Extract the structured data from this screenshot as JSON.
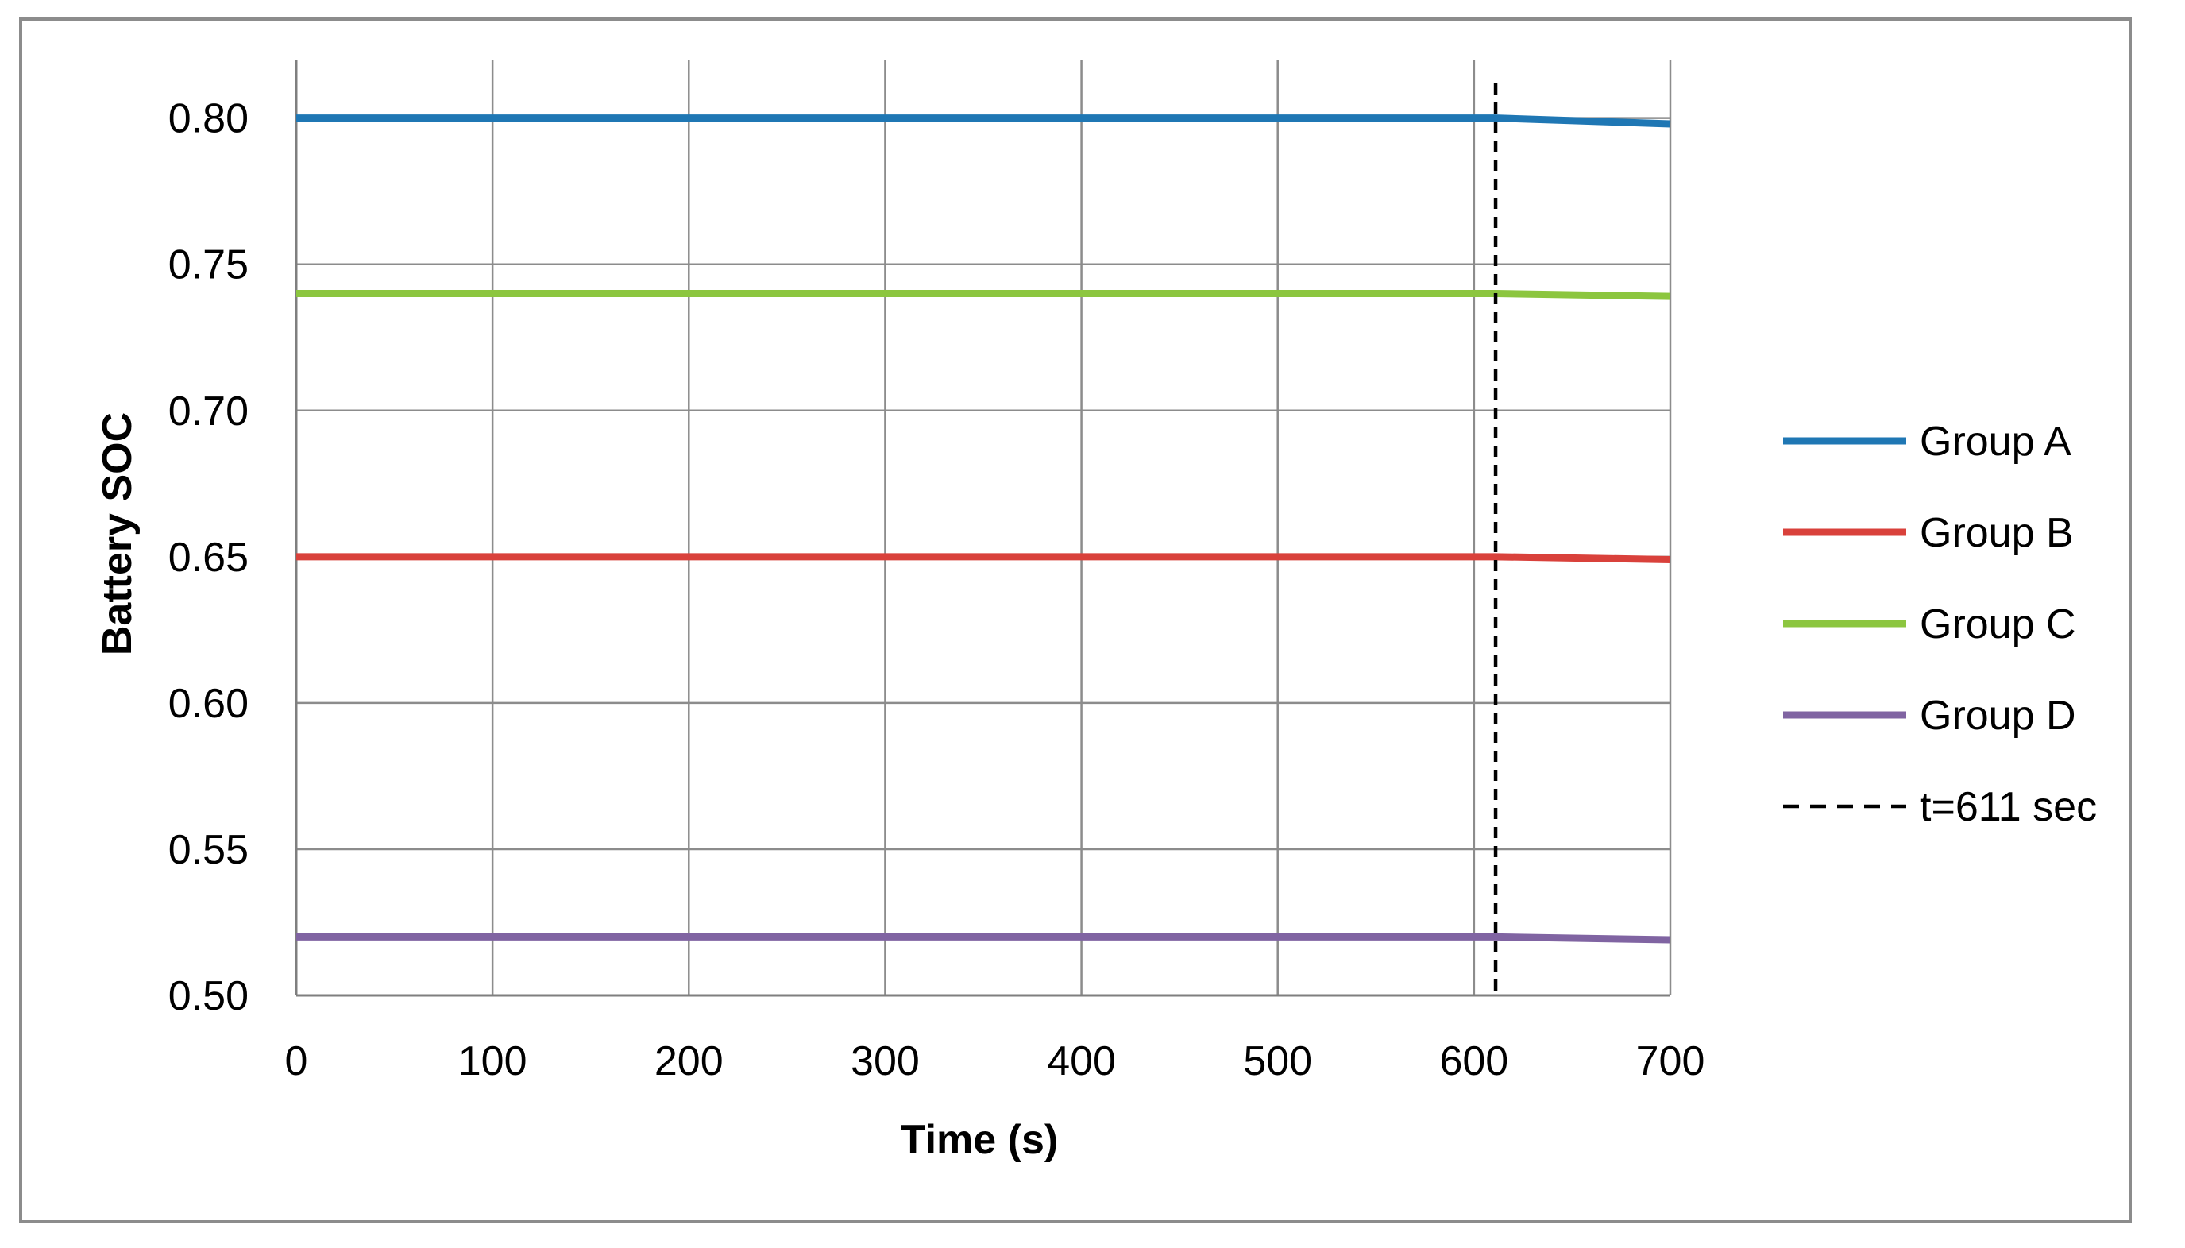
{
  "chart_data": {
    "type": "line",
    "title": "",
    "xlabel": "Time (s)",
    "ylabel": "Battery SOC",
    "xlim": [
      0,
      700
    ],
    "ylim": [
      0.5,
      0.82
    ],
    "x_ticks": [
      0,
      100,
      200,
      300,
      400,
      500,
      600,
      700
    ],
    "y_ticks": [
      0.5,
      0.55,
      0.6,
      0.65,
      0.7,
      0.75,
      0.8
    ],
    "x_tick_labels": [
      "0",
      "100",
      "200",
      "300",
      "400",
      "500",
      "600",
      "700"
    ],
    "y_tick_labels": [
      "0.50",
      "0.55",
      "0.60",
      "0.65",
      "0.70",
      "0.75",
      "0.80"
    ],
    "grid": true,
    "legend_position": "right",
    "series": [
      {
        "name": "Group A",
        "color": "#1f77b4",
        "x": [
          0,
          611,
          700
        ],
        "y": [
          0.8,
          0.8,
          0.798
        ]
      },
      {
        "name": "Group B",
        "color": "#d9413b",
        "x": [
          0,
          611,
          700
        ],
        "y": [
          0.65,
          0.65,
          0.649
        ]
      },
      {
        "name": "Group C",
        "color": "#8cc63f",
        "x": [
          0,
          611,
          700
        ],
        "y": [
          0.74,
          0.74,
          0.739
        ]
      },
      {
        "name": "Group D",
        "color": "#8064a2",
        "x": [
          0,
          611,
          700
        ],
        "y": [
          0.52,
          0.52,
          0.519
        ]
      }
    ],
    "vertical_line": {
      "name": "t=611 sec",
      "x": 611,
      "color": "#000000",
      "style": "dashed"
    }
  }
}
